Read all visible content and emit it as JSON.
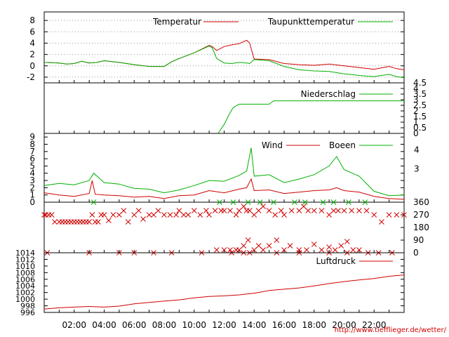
{
  "watermark": "http://www.tiefflieger.de/wetter/",
  "x_ticks": [
    "02:00",
    "04:00",
    "06:00",
    "08:00",
    "10:00",
    "12:00",
    "14:00",
    "16:00",
    "18:00",
    "20:00",
    "22:00"
  ],
  "colors": {
    "red": "#d00000",
    "green": "#00b000",
    "grid": "#999999"
  },
  "chart_data": [
    {
      "id": "temp",
      "type": "line",
      "xlabel": "",
      "ylabel": "",
      "x_range_hours": [
        0,
        24
      ],
      "ylim": [
        -3,
        9.5
      ],
      "y_ticks": [
        "8",
        "6",
        "4",
        "2",
        "0",
        "-2"
      ],
      "y_tick_values": [
        8,
        6,
        4,
        2,
        0,
        -2
      ],
      "legend": [
        "Temperatur",
        "Taupunkttemperatur"
      ],
      "series": [
        {
          "name": "Temperatur",
          "color": "#d00000",
          "x": [
            0,
            1,
            1.5,
            2,
            2.5,
            3,
            3.5,
            4,
            5,
            6,
            7,
            8,
            8.5,
            9,
            10,
            11,
            11.2,
            11.5,
            12,
            12.5,
            13,
            13.5,
            13.7,
            14,
            15,
            16,
            17,
            18,
            19,
            20,
            21,
            22,
            23,
            23.5,
            24
          ],
          "y": [
            0.6,
            0.5,
            0.3,
            0.4,
            0.8,
            0.5,
            0.6,
            0.9,
            0.6,
            0.2,
            -0.1,
            -0.1,
            0.7,
            1.3,
            2.3,
            3.6,
            3.4,
            2.7,
            3.4,
            3.7,
            3.9,
            4.5,
            4.0,
            1.2,
            1.1,
            0.4,
            0.2,
            0.1,
            0.3,
            0.0,
            -0.3,
            -0.6,
            -0.1,
            -0.5,
            -0.7
          ]
        },
        {
          "name": "Taupunkttemperatur",
          "color": "#00b000",
          "x": [
            0,
            1,
            1.5,
            2,
            2.5,
            3,
            3.5,
            4,
            5,
            6,
            7,
            8,
            8.5,
            9,
            10,
            11,
            11.2,
            11.5,
            12,
            12.5,
            13,
            13.5,
            13.7,
            14,
            15,
            16,
            17,
            18,
            19,
            20,
            21,
            22,
            23,
            23.5,
            24
          ],
          "y": [
            0.6,
            0.5,
            0.3,
            0.4,
            0.8,
            0.5,
            0.6,
            0.9,
            0.6,
            0.2,
            -0.1,
            -0.1,
            0.7,
            1.3,
            2.3,
            3.5,
            3.2,
            1.3,
            0.5,
            0.4,
            0.6,
            0.5,
            0.4,
            1.1,
            0.9,
            -0.1,
            -0.7,
            -0.9,
            -1.0,
            -1.4,
            -1.7,
            -1.9,
            -1.5,
            -1.9,
            -2.1
          ]
        }
      ]
    },
    {
      "id": "rain",
      "type": "line",
      "xlabel": "",
      "ylabel": "",
      "ylim": [
        0,
        4.5
      ],
      "y_ticks": [
        "4.5",
        "4",
        "3.5",
        "3",
        "2.5",
        "2",
        "1.5",
        "1",
        "0.5",
        "0"
      ],
      "y_tick_values": [
        4.5,
        4,
        3.5,
        3,
        2.5,
        2,
        1.5,
        1,
        0.5,
        0
      ],
      "legend": [
        "Niederschlag"
      ],
      "series": [
        {
          "name": "Niederschlag",
          "color": "#00b000",
          "x": [
            11.6,
            12.0,
            12.3,
            12.6,
            13.0,
            13.3,
            14.0,
            14.5,
            15.0,
            15.3,
            24
          ],
          "y": [
            0.0,
            0.8,
            1.6,
            2.3,
            2.6,
            2.6,
            2.6,
            2.6,
            2.6,
            2.9,
            2.9
          ]
        }
      ]
    },
    {
      "id": "wind",
      "type": "line",
      "xlabel": "",
      "ylabel": "",
      "ylim": [
        0,
        9.5
      ],
      "y_ticks": [
        "9",
        "8",
        "7",
        "6",
        "5",
        "4",
        "3",
        "2",
        "1",
        "0"
      ],
      "y_tick_values": [
        9,
        8,
        7,
        6,
        5,
        4,
        3,
        2,
        1,
        0
      ],
      "y2_ticks": [
        "4",
        "3"
      ],
      "y2_tick_values": [
        7.2,
        4.6
      ],
      "legend": [
        "Wind",
        "Boeen"
      ],
      "series": [
        {
          "name": "Wind",
          "color": "#d00000",
          "x": [
            0,
            1,
            2,
            3,
            3.2,
            3.4,
            4,
            5,
            6,
            7,
            8,
            9,
            10,
            11,
            12,
            13,
            13.5,
            13.8,
            14,
            15,
            16,
            17,
            18,
            19,
            19.5,
            20,
            21,
            22,
            23,
            24
          ],
          "y": [
            1.3,
            1.0,
            0.8,
            1.2,
            3.0,
            1.1,
            1.0,
            0.9,
            0.7,
            0.8,
            0.5,
            0.9,
            1.0,
            1.6,
            1.3,
            1.8,
            2.0,
            3.2,
            1.6,
            1.7,
            1.2,
            1.4,
            1.6,
            1.7,
            2.0,
            1.6,
            1.4,
            0.8,
            0.5,
            0.4
          ]
        },
        {
          "name": "Boeen",
          "color": "#00b000",
          "x": [
            0,
            1,
            2,
            3,
            3.3,
            4,
            5,
            6,
            7,
            8,
            9,
            10,
            11,
            12,
            13,
            13.5,
            13.8,
            14,
            15,
            16,
            17,
            18,
            19,
            19.5,
            20,
            21,
            22,
            23,
            24
          ],
          "y": [
            2.3,
            2.6,
            2.4,
            3.0,
            4.0,
            2.7,
            2.5,
            1.9,
            1.8,
            1.3,
            1.7,
            2.3,
            3.0,
            2.9,
            3.7,
            4.3,
            7.5,
            3.6,
            3.8,
            2.7,
            3.2,
            3.8,
            5.0,
            6.3,
            4.5,
            3.6,
            1.5,
            0.9,
            1.0
          ]
        }
      ]
    },
    {
      "id": "direction",
      "type": "scatter",
      "xlabel": "",
      "ylabel": "",
      "ylim": [
        0,
        360
      ],
      "y_ticks": [
        "360",
        "270",
        "180",
        "90",
        "0"
      ],
      "y_tick_values": [
        360,
        270,
        180,
        90,
        0
      ],
      "series": [
        {
          "name": "",
          "color": "#d00000",
          "x": [
            0,
            0.1,
            0.3,
            0.5,
            0.7,
            1,
            1.2,
            1.4,
            1.6,
            1.8,
            2,
            2.2,
            2.4,
            2.6,
            2.8,
            3,
            3.2,
            3.4,
            3.6,
            3.8,
            4,
            4.3,
            4.6,
            5,
            5.3,
            5.6,
            6,
            6.3,
            6.6,
            7,
            7.3,
            7.6,
            8,
            8.4,
            8.8,
            9,
            9.3,
            9.6,
            10,
            10.4,
            10.8,
            11,
            11.4,
            11.8,
            12,
            12.4,
            12.8,
            13,
            13.3,
            13.5,
            13.7,
            14,
            14.3,
            14.6,
            15,
            15.4,
            15.8,
            16,
            16.5,
            17,
            17.3,
            17.6,
            18,
            18.5,
            19,
            19.3,
            19.6,
            20,
            20.5,
            21,
            21.5,
            22,
            22.5,
            23,
            23.5,
            24,
            11.5,
            12,
            12.4,
            12.8,
            13,
            13.3,
            13.6,
            14,
            14.3,
            14.6,
            15,
            15.5,
            16,
            16.4,
            17,
            17.5,
            18,
            18.5,
            19,
            19.4,
            19.8,
            20.2,
            20.6,
            21,
            0.2,
            3,
            5,
            6,
            7.3,
            8.5,
            10.5,
            12.5,
            13.3,
            13.7,
            15.5,
            17,
            19,
            20.2,
            21.6,
            22.3,
            23.2
          ],
          "y": [
            270,
            270,
            270,
            270,
            220,
            220,
            220,
            220,
            220,
            220,
            220,
            220,
            220,
            220,
            220,
            220,
            270,
            220,
            220,
            270,
            270,
            230,
            270,
            270,
            300,
            220,
            270,
            300,
            240,
            270,
            270,
            300,
            270,
            270,
            270,
            300,
            270,
            270,
            300,
            270,
            300,
            270,
            300,
            300,
            300,
            300,
            270,
            300,
            330,
            300,
            300,
            270,
            300,
            330,
            300,
            270,
            300,
            270,
            300,
            300,
            330,
            300,
            300,
            300,
            270,
            300,
            300,
            300,
            300,
            300,
            300,
            270,
            220,
            270,
            270,
            270,
            20,
            20,
            20,
            20,
            20,
            50,
            90,
            20,
            50,
            20,
            50,
            90,
            20,
            50,
            20,
            20,
            60,
            20,
            40,
            20,
            50,
            80,
            20,
            20,
            0,
            0,
            0,
            0,
            0,
            0,
            0,
            0,
            0,
            0,
            0,
            0,
            0,
            0,
            0,
            0,
            0
          ]
        },
        {
          "name": "",
          "color": "#00b000",
          "x": [
            3.3,
            11.7,
            12.6,
            13.6,
            14.4,
            15.3,
            16.7,
            17.4,
            18.6,
            19.3,
            20.3,
            21.4
          ],
          "y": [
            360,
            360,
            360,
            360,
            360,
            360,
            360,
            360,
            360,
            360,
            360,
            360
          ]
        }
      ]
    },
    {
      "id": "pressure",
      "type": "line",
      "xlabel": "",
      "ylabel": "",
      "ylim": [
        996,
        1014
      ],
      "y_ticks": [
        "1014",
        "1012",
        "1010",
        "1008",
        "1006",
        "1004",
        "1002",
        "1000",
        "998",
        "996"
      ],
      "y_tick_values": [
        1014,
        1012,
        1010,
        1008,
        1006,
        1004,
        1002,
        1000,
        998,
        996
      ],
      "legend": [
        "Luftdruck"
      ],
      "series": [
        {
          "name": "Luftdruck",
          "color": "#d00000",
          "x": [
            0,
            1,
            2,
            3,
            4,
            5,
            6,
            7,
            8,
            9,
            10,
            11,
            12,
            13,
            14,
            15,
            16,
            17,
            18,
            19,
            20,
            21,
            22,
            23,
            24
          ],
          "y": [
            997.0,
            997.4,
            997.6,
            997.8,
            997.6,
            997.9,
            998.6,
            999.0,
            999.4,
            999.8,
            1000.4,
            1000.8,
            1001.0,
            1001.3,
            1001.8,
            1002.6,
            1003.0,
            1003.4,
            1004.0,
            1004.7,
            1005.3,
            1005.8,
            1006.2,
            1006.9,
            1007.3
          ]
        }
      ]
    }
  ]
}
